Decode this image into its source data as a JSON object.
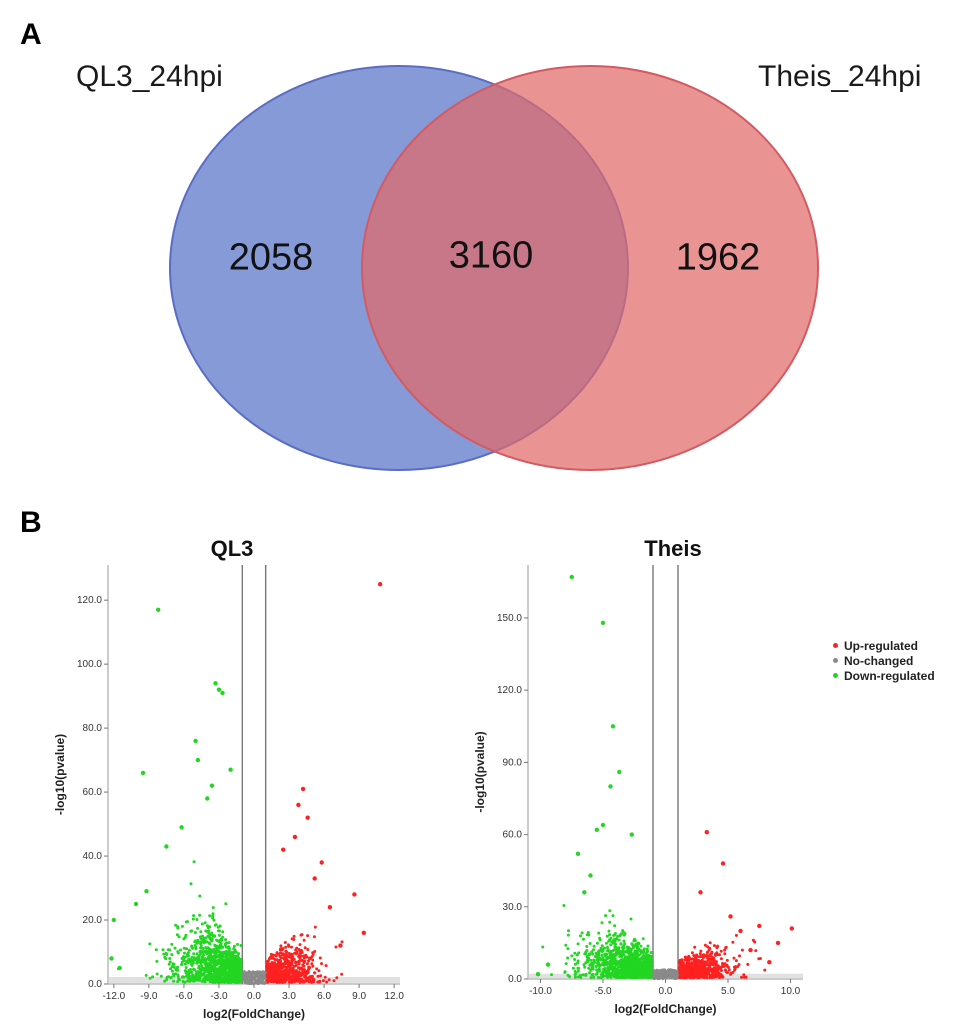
{
  "panel_a": {
    "label": "A"
  },
  "panel_b": {
    "label": "B"
  },
  "colors": {
    "blue": "#6d82cf",
    "red": "#df6a6a",
    "up": "#ff2020",
    "none": "#8a8a8a",
    "down": "#22d622"
  },
  "chart_data": [
    {
      "type": "venn",
      "sets": [
        {
          "name": "QL3_24hpi",
          "unique": 2058
        },
        {
          "name": "Theis_24hpi",
          "unique": 1962
        }
      ],
      "intersection": 3160
    },
    {
      "type": "scatter",
      "title": "QL3",
      "xlabel": "log2(FoldChange)",
      "ylabel": "-log10(pvalue)",
      "xlim": [
        -12.5,
        12.5
      ],
      "ylim": [
        0,
        131
      ],
      "xticks": [
        "-12.0",
        "-9.0",
        "-6.0",
        "-3.0",
        "0.0",
        "3.0",
        "6.0",
        "9.0",
        "12.0"
      ],
      "yticks": [
        "0.0",
        "20.0",
        "40.0",
        "60.0",
        "80.0",
        "100.0",
        "120.0"
      ],
      "thresholds": [
        -1,
        1
      ],
      "series": [
        {
          "name": "Up-regulated",
          "points": [
            [
              10.8,
              125
            ],
            [
              4.2,
              61
            ],
            [
              3.5,
              46
            ],
            [
              5.8,
              38
            ],
            [
              8.6,
              28
            ],
            [
              9.4,
              16
            ],
            [
              6.5,
              24
            ],
            [
              5.2,
              33
            ],
            [
              7.4,
              12
            ],
            [
              3.8,
              56
            ],
            [
              4.6,
              52
            ],
            [
              2.5,
              42
            ]
          ]
        },
        {
          "name": "Down-regulated",
          "points": [
            [
              -8.2,
              117
            ],
            [
              -3.3,
              94
            ],
            [
              -3.0,
              92
            ],
            [
              -2.7,
              91
            ],
            [
              -5.0,
              76
            ],
            [
              -4.8,
              70
            ],
            [
              -9.5,
              66
            ],
            [
              -12.0,
              20
            ],
            [
              -12.2,
              8
            ],
            [
              -11.5,
              5
            ],
            [
              -10.1,
              25
            ],
            [
              -9.2,
              29
            ],
            [
              -7.5,
              43
            ],
            [
              -6.2,
              49
            ],
            [
              -2.0,
              67
            ],
            [
              -4.0,
              58
            ],
            [
              -3.6,
              62
            ]
          ]
        }
      ]
    },
    {
      "type": "scatter",
      "title": "Theis",
      "xlabel": "log2(FoldChange)",
      "ylabel": "-log10(pvalue)",
      "xlim": [
        -11,
        11
      ],
      "ylim": [
        0,
        172
      ],
      "xticks": [
        "-10.0",
        "-5.0",
        "0.0",
        "5.0",
        "10.0"
      ],
      "yticks": [
        "0.0",
        "30.0",
        "60.0",
        "90.0",
        "120.0",
        "150.0"
      ],
      "thresholds": [
        -1,
        1
      ],
      "series": [
        {
          "name": "Up-regulated",
          "points": [
            [
              10.1,
              21
            ],
            [
              9.0,
              15
            ],
            [
              8.3,
              7
            ],
            [
              7.5,
              22
            ],
            [
              6.0,
              20
            ],
            [
              4.6,
              48
            ],
            [
              3.3,
              61
            ],
            [
              2.8,
              36
            ],
            [
              5.2,
              26
            ],
            [
              6.8,
              12
            ]
          ]
        },
        {
          "name": "Down-regulated",
          "points": [
            [
              -7.5,
              167
            ],
            [
              -5.0,
              148
            ],
            [
              -4.2,
              105
            ],
            [
              -3.7,
              86
            ],
            [
              -4.4,
              80
            ],
            [
              -5.5,
              62
            ],
            [
              -5.0,
              64
            ],
            [
              -2.7,
              60
            ],
            [
              -7.0,
              52
            ],
            [
              -10.2,
              2
            ],
            [
              -9.4,
              6
            ],
            [
              -6.0,
              43
            ],
            [
              -6.5,
              36
            ]
          ]
        }
      ]
    }
  ],
  "legend": [
    {
      "label": "Up-regulated",
      "color": "#ff2020"
    },
    {
      "label": "No-changed",
      "color": "#8a8a8a"
    },
    {
      "label": "Down-regulated",
      "color": "#22d622"
    }
  ]
}
